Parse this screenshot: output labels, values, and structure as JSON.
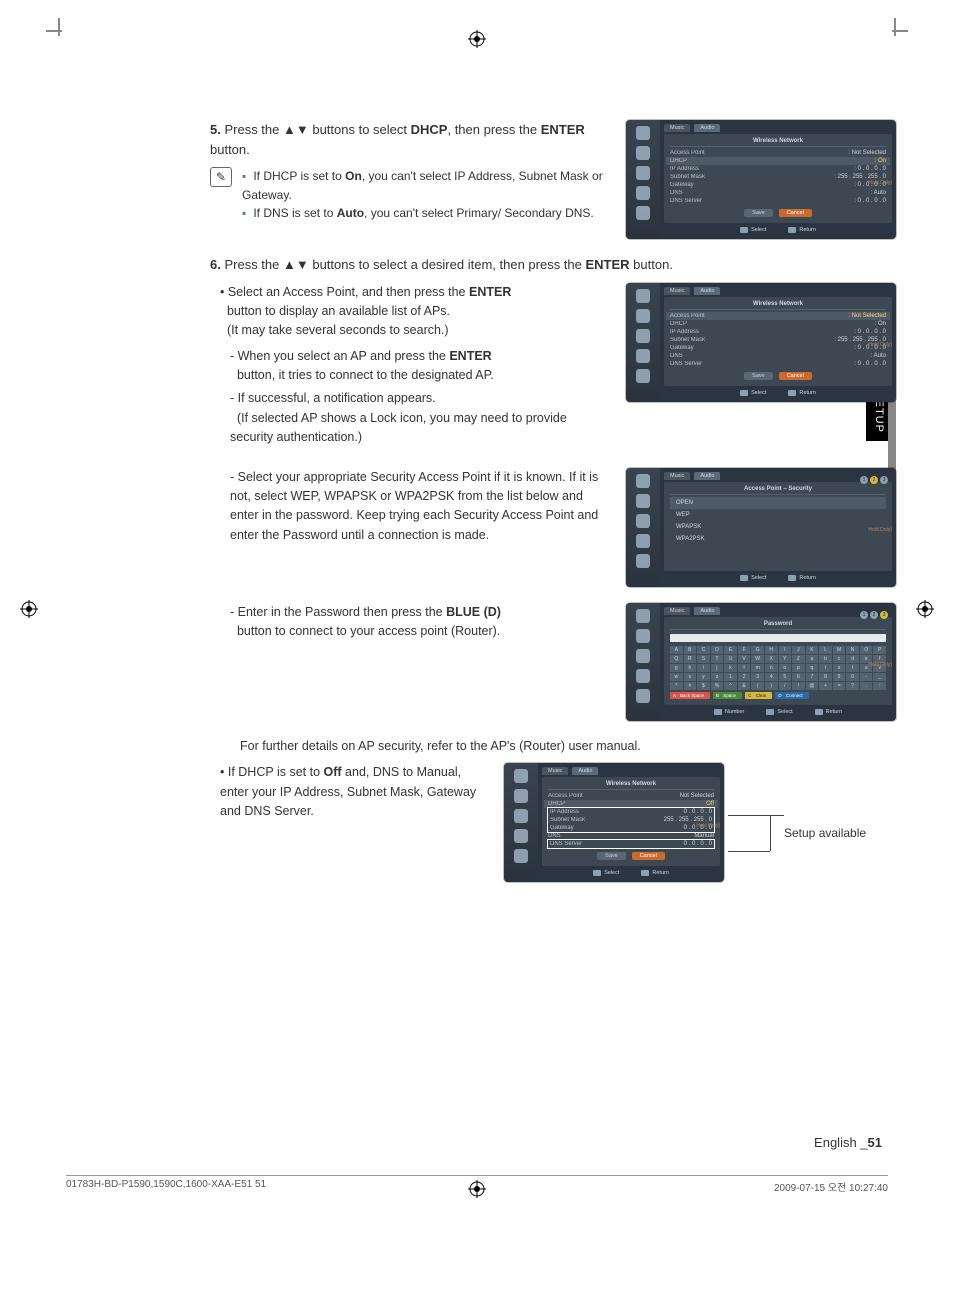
{
  "page": {
    "section_title": "NETWORK SETUP",
    "lang_page": "English",
    "page_number": "51",
    "footer_left": "01783H-BD-P1590,1590C,1600-XAA-E51   51",
    "footer_right": "2009-07-15   오전 10:27:40"
  },
  "step5": {
    "num": "5.",
    "text_prefix": "Press the ▲▼ buttons to select ",
    "bold1": "DHCP",
    "text_mid": ", then press the ",
    "bold2": "ENTER",
    "text_suffix": " button.",
    "note1_prefix": "If DHCP is set to ",
    "note1_bold": "On",
    "note1_suffix": ", you can't select IP Address, Subnet Mask or Gateway.",
    "note2_prefix": "If DNS is set to ",
    "note2_bold": "Auto",
    "note2_suffix": ", you can't select Primary/ Secondary DNS."
  },
  "step6": {
    "num": "6.",
    "text_prefix": "Press the ▲▼ buttons to select a desired item, then press the ",
    "bold1": "ENTER",
    "text_suffix": " button.",
    "b1_prefix": "Select an Access Point, and then press the ",
    "b1_bold": "ENTER",
    "b1_line2": "button to display an available list of APs.",
    "b1_line3": "(It may take several seconds to search.)",
    "b1a_prefix": "- When you select an AP and press the ",
    "b1a_bold": "ENTER",
    "b1a_line2": "button, it tries to connect to the designated AP.",
    "b1b": "- If successful, a notification appears.",
    "b1b_line2": "(If selected AP shows a Lock icon, you may need to provide security authentication.)",
    "b2": "- Select your appropriate Security Access Point if it is known. If it is not, select WEP, WPAPSK or WPA2PSK from the list below and enter in the password. Keep trying each Security Access Point and enter the Password until a connection is made.",
    "b3_prefix": "- Enter in the Password then press the ",
    "b3_bold": "BLUE (D)",
    "b3_line2": "button to connect to your access point (Router).",
    "ap_detail": "For further details on AP security, refer to the AP's (Router) user manual.",
    "b4_prefix": "If DHCP is set to ",
    "b4_bold": "Off",
    "b4_mid": " and, DNS to Manual, enter your IP Address, Subnet Mask, Gateway and DNS Server.",
    "setup_available": "Setup available"
  },
  "shot_common": {
    "tab_music": "Music",
    "tab_audio": "Audio",
    "select": "Select",
    "return": "Return",
    "number": "Number",
    "save": "Save",
    "cancel": "Cancel",
    "holdonly": "Hold Only)"
  },
  "shot1": {
    "title": "Wireless Network",
    "rows": {
      "access_point": "Access Point",
      "access_point_v": "Not Selected",
      "dhcp": "DHCP",
      "dhcp_v": "On",
      "ip": "IP Address",
      "ip_v": "0 . 0 . 0 . 0",
      "subnet": "Subnet Mask",
      "subnet_v": "255 . 255 . 255 . 0",
      "gateway": "Gateway",
      "gateway_v": "0 . 0 . 0 . 0",
      "dns": "DNS",
      "dns_v": "Auto",
      "dnssrv": "DNS Server",
      "dnssrv_v": "0 . 0 . 0 . 0"
    }
  },
  "shot3": {
    "title": "Access Point – Security",
    "items": {
      "open": "OPEN",
      "wep": "WEP",
      "wpapsk": "WPAPSK",
      "wpa2psk": "WPA2PSK"
    }
  },
  "shot4": {
    "title": "Password",
    "backspace": "Back Space",
    "space": "Space",
    "clear": "Clear",
    "connect": "Connect",
    "keys": [
      "A",
      "B",
      "C",
      "D",
      "E",
      "F",
      "G",
      "H",
      "I",
      "J",
      "K",
      "L",
      "M",
      "N",
      "O",
      "P",
      "Q",
      "R",
      "S",
      "T",
      "U",
      "V",
      "W",
      "X",
      "Y",
      "Z",
      "a",
      "b",
      "c",
      "d",
      "e",
      "f",
      "g",
      "h",
      "i",
      "j",
      "k",
      "l",
      "m",
      "n",
      "o",
      "p",
      "q",
      "r",
      "s",
      "t",
      "u",
      "v",
      "w",
      "x",
      "y",
      "z",
      "1",
      "2",
      "3",
      "4",
      "5",
      "6",
      "7",
      "8",
      "9",
      "0",
      "-",
      "_",
      "*",
      "#",
      "$",
      "%",
      "^",
      "&",
      "(",
      ")",
      "/",
      "!",
      "@",
      "+",
      "=",
      "?",
      ".",
      ":",
      ";",
      "~"
    ]
  },
  "shot5": {
    "title": "Wireless Network",
    "rows": {
      "access_point": "Access Point",
      "access_point_v": "Not Selected",
      "dhcp": "DHCP",
      "dhcp_v": "Off",
      "ip": "IP Address",
      "ip_v": "0 . 0 . 0 . 0",
      "subnet": "Subnet Mask",
      "subnet_v": "255 . 255 . 255 . 0",
      "gateway": "Gateway",
      "gateway_v": "0 . 0 . 0 . 0",
      "dns": "DNS",
      "dns_v": "Manual",
      "dnssrv": "DNS Server",
      "dnssrv_v": "0 . 0 . 0 . 0"
    }
  },
  "colors": {
    "page_bg": "#ffffff",
    "shot_bg": "#2b3541",
    "shot_panel": "#3e4852",
    "highlight_text": "#ffd973",
    "orange_btn": "#cc6a2e"
  }
}
